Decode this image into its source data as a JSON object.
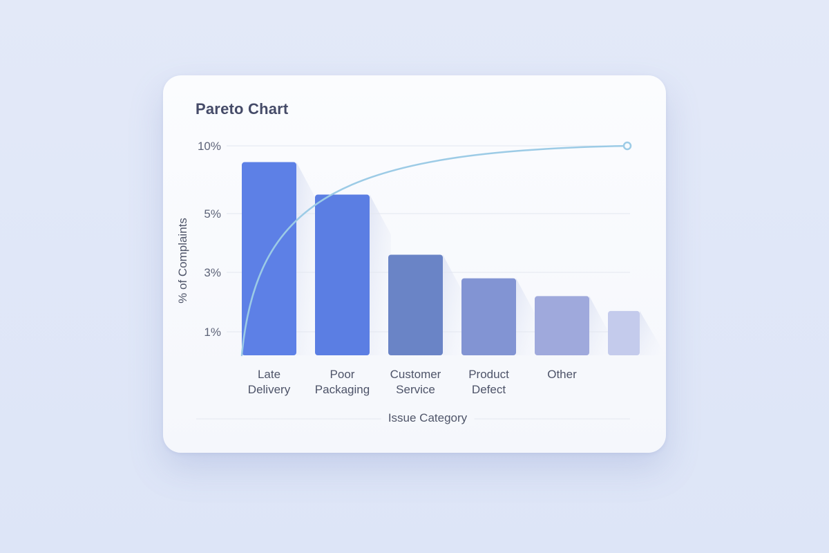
{
  "card": {
    "title": "Pareto Chart"
  },
  "chart_data": {
    "type": "bar",
    "title": "Pareto Chart",
    "xlabel": "Issue Category",
    "ylabel": "% of Complaints",
    "categories": [
      [
        "Late",
        "Delivery"
      ],
      [
        "Poor",
        "Packaging"
      ],
      [
        "Customer",
        "Service"
      ],
      [
        "Product",
        "Defect"
      ],
      [
        "Other"
      ],
      [
        ""
      ]
    ],
    "y_ticks": [
      "1%",
      "3%",
      "5%",
      "10%"
    ],
    "values": [
      8.8,
      6.4,
      3.6,
      2.8,
      2.2,
      1.7
    ],
    "cumulative_line": {
      "start": 0,
      "end": 10,
      "end_marker": true
    },
    "grid": true,
    "legend": "none",
    "colors": {
      "bars": [
        "#5d80e6",
        "#5b7ee3",
        "#6a84c6",
        "#8294d3",
        "#9fa9dc",
        "#c4cbec"
      ],
      "line": "#9ccbe6",
      "grid": "#e3e7f0"
    }
  }
}
